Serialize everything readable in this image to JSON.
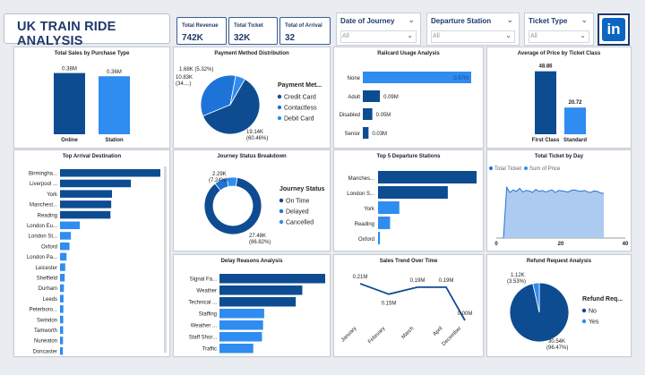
{
  "title": "UK TRAIN RIDE ANALYSIS",
  "kpis": [
    {
      "label": "Total Revenue",
      "value": "742K"
    },
    {
      "label": "Total Ticket",
      "value": "32K"
    },
    {
      "label": "Total of Arrival",
      "value": "32"
    }
  ],
  "slicers": [
    {
      "label": "Date of Journey",
      "value": "All"
    },
    {
      "label": "Departure Station",
      "value": "All"
    },
    {
      "label": "Ticket Type",
      "value": "All"
    }
  ],
  "linkedin_text": "in",
  "colors": {
    "dark": "#0e4c92",
    "mid": "#1e73d8",
    "light": "#2f8cf0",
    "navy": "#1f3a6b"
  },
  "chart_data": [
    {
      "id": "sales-by-purchase",
      "type": "bar",
      "title": "Total Sales by Purchase Type",
      "categories": [
        "Online",
        "Station"
      ],
      "values": [
        0.38,
        0.36
      ],
      "labels": [
        "0.38M",
        "0.36M"
      ]
    },
    {
      "id": "payment-method",
      "type": "pie",
      "title": "Payment Method Distribution",
      "legend_title": "Payment Met...",
      "slices": [
        {
          "name": "Credit Card",
          "value": 19.14,
          "label": "19.14K",
          "pct": "(60.46%)"
        },
        {
          "name": "Contactless",
          "value": 10.83,
          "label": "10.83K",
          "pct": "(34....)"
        },
        {
          "name": "Debit Card",
          "value": 1.68,
          "label": "1.68K (5.32%)",
          "pct": ""
        }
      ]
    },
    {
      "id": "railcard-usage",
      "type": "bar",
      "title": "Railcard Usage Analysis",
      "categories": [
        "None",
        "Adult",
        "Disabled",
        "Senior"
      ],
      "values": [
        0.57,
        0.09,
        0.05,
        0.03
      ],
      "labels": [
        "0.57M",
        "0.09M",
        "0.05M",
        "0.03M"
      ]
    },
    {
      "id": "price-by-class",
      "type": "bar",
      "title": "Average of Price by Ticket Class",
      "categories": [
        "First Class",
        "Standard"
      ],
      "values": [
        48.86,
        20.72
      ],
      "labels": [
        "48.86",
        "20.72"
      ]
    },
    {
      "id": "top-arrival",
      "type": "bar",
      "title": "Top Arrival Destination",
      "categories": [
        "Birmingha...",
        "Liverpool ...",
        "York",
        "Manchest...",
        "Reading",
        "London Eu...",
        "London St...",
        "Oxford",
        "London Pa...",
        "Leicester",
        "Sheffield",
        "Durham",
        "Leeds",
        "Peterboro...",
        "Swindon",
        "Tamworth",
        "Nuneaton",
        "Doncaster"
      ],
      "values": [
        7.74,
        5.47,
        4.01,
        3.95,
        3.89,
        1.53,
        0.84,
        0.73,
        0.5,
        0.4,
        0.36,
        0.3,
        0.27,
        0.26,
        0.25,
        0.24,
        0.23,
        0.22
      ]
    },
    {
      "id": "journey-status",
      "type": "pie",
      "title": "Journey Status Breakdown",
      "legend_title": "Journey Status",
      "slices": [
        {
          "name": "On Time",
          "value": 27.48,
          "label": "27.48K",
          "pct": "(86.82%)"
        },
        {
          "name": "Delayed",
          "value": 2.29,
          "label": "2.29K",
          "pct": "(7.24%)"
        },
        {
          "name": "Cancelled",
          "value": 1.88,
          "label": "",
          "pct": ""
        }
      ]
    },
    {
      "id": "top-departure",
      "type": "bar",
      "title": "Top 5 Departure Stations",
      "categories": [
        "Manches...",
        "London S...",
        "York",
        "Reading",
        "Oxford"
      ],
      "values": [
        5.65,
        4.0,
        1.22,
        0.69,
        0.11
      ]
    },
    {
      "id": "ticket-by-day",
      "type": "area",
      "title": "Total Ticket by Day",
      "legend": [
        "Total Ticket",
        "Sum of Price"
      ],
      "x_ticks": [
        "0",
        "20",
        "40"
      ],
      "xlim": [
        0,
        40
      ],
      "series": [
        {
          "name": "Total Ticket",
          "values": [
            0,
            1000,
            900,
            950,
            920,
            980,
            910,
            940,
            930,
            900,
            960,
            920,
            940,
            910,
            930,
            950,
            900,
            940,
            930,
            920,
            910,
            940,
            950,
            930,
            920,
            940,
            910,
            900,
            930,
            920,
            890,
            880
          ]
        }
      ]
    },
    {
      "id": "delay-reasons",
      "type": "bar",
      "title": "Delay Reasons Analysis",
      "categories": [
        "Signal Fa...",
        "Weather",
        "Technical ...",
        "Staffing",
        "Weather ...",
        "Staff Shor...",
        "Traffic"
      ],
      "values": [
        970,
        760,
        700,
        410,
        400,
        390,
        310
      ]
    },
    {
      "id": "sales-trend",
      "type": "line",
      "title": "Sales Trend Over Time",
      "categories": [
        "January",
        "February",
        "March",
        "April",
        "December"
      ],
      "values": [
        0.21,
        0.15,
        0.19,
        0.19,
        0.0
      ],
      "labels": [
        "0.21M",
        "0.15M",
        "0.19M",
        "0.19M",
        "0.00M"
      ]
    },
    {
      "id": "refund-request",
      "type": "pie",
      "title": "Refund Request Analysis",
      "legend_title": "Refund Req...",
      "slices": [
        {
          "name": "No",
          "value": 30.54,
          "label": "30.54K",
          "pct": "(96.47%)"
        },
        {
          "name": "Yes",
          "value": 1.12,
          "label": "1.12K",
          "pct": "(3.53%)"
        }
      ]
    }
  ]
}
